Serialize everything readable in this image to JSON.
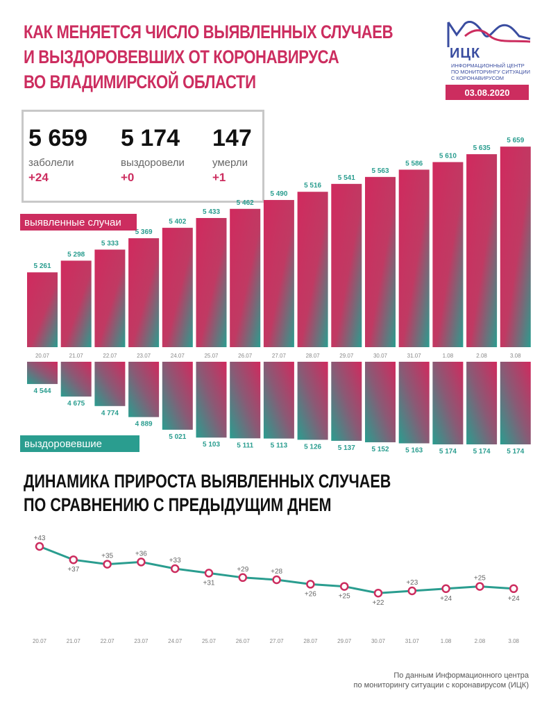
{
  "header": {
    "title_lines": [
      "КАК МЕНЯЕТСЯ ЧИСЛО ВЫЯВЛЕННЫХ СЛУЧАЕВ",
      "И ВЫЗДОРОВЕВШИХ ОТ КОРОНАВИРУСА",
      "ВО ВЛАДИМИРСКОЙ ОБЛАСТИ"
    ],
    "logo_text": "ИЦК",
    "logo_sub_lines": [
      "ИНФОРМАЦИОННЫЙ ЦЕНТР",
      "ПО МОНИТОРИНГУ СИТУАЦИИ",
      "С КОРОНАВИРУСОМ"
    ],
    "date": "03.08.2020"
  },
  "stats": [
    {
      "value": "5 659",
      "label": "заболели",
      "delta": "+24"
    },
    {
      "value": "5 174",
      "label": "выздоровели",
      "delta": "+0"
    },
    {
      "value": "147",
      "label": "умерли",
      "delta": "+1"
    }
  ],
  "tags": {
    "cases": "выявленные случаи",
    "recovered": "выздоровевшие"
  },
  "subtitle_lines": [
    "ДИНАМИКА ПРИРОСТА ВЫЯВЛЕННЫХ СЛУЧАЕВ",
    "ПО СРАВНЕНИЮ С ПРЕДЫДУЩИМ ДНЕМ"
  ],
  "source_lines": [
    "По данным Информационного центра",
    "по мониторингу ситуации с коронавирусом (ИЦК)"
  ],
  "colors": {
    "accent": "#cc2d5f",
    "teal": "#2a9d8f",
    "line": "#2a9d8f",
    "marker": "#cc2d5f"
  },
  "chart_data": [
    {
      "type": "bar",
      "categories": [
        "20.07",
        "21.07",
        "22.07",
        "23.07",
        "24.07",
        "25.07",
        "26.07",
        "27.07",
        "28.07",
        "29.07",
        "30.07",
        "31.07",
        "1.08",
        "2.08",
        "3.08"
      ],
      "series": [
        {
          "name": "выявленные случаи",
          "values": [
            5261,
            5298,
            5333,
            5369,
            5402,
            5433,
            5462,
            5490,
            5516,
            5541,
            5563,
            5586,
            5610,
            5635,
            5659
          ],
          "labels": [
            "5 261",
            "5 298",
            "5 333",
            "5 369",
            "5 402",
            "5 433",
            "5 462",
            "5 490",
            "5 516",
            "5 541",
            "5 563",
            "5 586",
            "5 610",
            "5 635",
            "5 659"
          ]
        },
        {
          "name": "выздоровевшие",
          "values": [
            4544,
            4675,
            4774,
            4889,
            5021,
            5103,
            5111,
            5113,
            5126,
            5137,
            5152,
            5163,
            5174,
            5174,
            5174
          ],
          "labels": [
            "4 544",
            "4 675",
            "4 774",
            "4 889",
            "5 021",
            "5 103",
            "5 111",
            "5 113",
            "5 126",
            "5 137",
            "5 152",
            "5 163",
            "5 174",
            "5 174",
            "5 174"
          ]
        }
      ]
    },
    {
      "type": "line",
      "categories": [
        "20.07",
        "21.07",
        "22.07",
        "23.07",
        "24.07",
        "25.07",
        "26.07",
        "27.07",
        "28.07",
        "29.07",
        "30.07",
        "31.07",
        "1.08",
        "2.08",
        "3.08"
      ],
      "values": [
        43,
        37,
        35,
        36,
        33,
        31,
        29,
        28,
        26,
        25,
        22,
        23,
        24,
        25,
        24
      ],
      "labels": [
        "+43",
        "+37",
        "+35",
        "+36",
        "+33",
        "+31",
        "+29",
        "+28",
        "+26",
        "+25",
        "+22",
        "+23",
        "+24",
        "+25",
        "+24"
      ],
      "label_position": [
        "above",
        "below",
        "above",
        "above",
        "above",
        "below",
        "above",
        "above",
        "below",
        "below",
        "below",
        "above",
        "below",
        "above",
        "below"
      ]
    }
  ]
}
